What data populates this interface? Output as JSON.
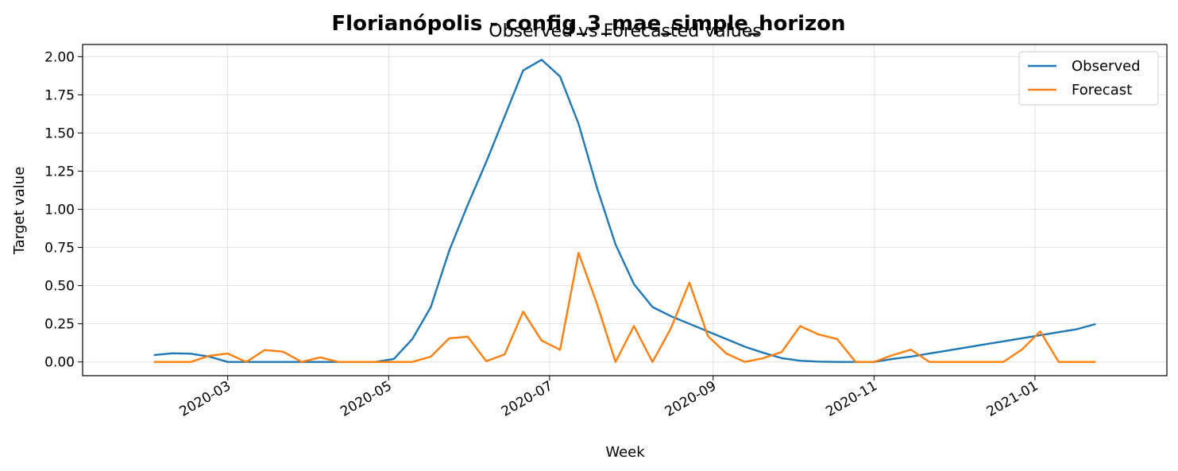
{
  "chart_data": {
    "type": "line",
    "suptitle": "Florianópolis - config_3_mae_simple_horizon",
    "title": "Observed vs Forecasted values",
    "xlabel": "Week",
    "ylabel": "Target value",
    "x": [
      "2020-02-02",
      "2020-02-09",
      "2020-02-16",
      "2020-02-23",
      "2020-03-01",
      "2020-03-08",
      "2020-03-15",
      "2020-03-22",
      "2020-03-29",
      "2020-04-05",
      "2020-04-12",
      "2020-04-19",
      "2020-04-26",
      "2020-05-03",
      "2020-05-10",
      "2020-05-17",
      "2020-05-24",
      "2020-05-31",
      "2020-06-07",
      "2020-06-14",
      "2020-06-21",
      "2020-06-28",
      "2020-07-05",
      "2020-07-12",
      "2020-07-19",
      "2020-07-26",
      "2020-08-02",
      "2020-08-09",
      "2020-08-16",
      "2020-08-23",
      "2020-08-30",
      "2020-09-06",
      "2020-09-13",
      "2020-09-20",
      "2020-09-27",
      "2020-10-04",
      "2020-10-11",
      "2020-10-18",
      "2020-10-25",
      "2020-11-01",
      "2020-11-08",
      "2020-11-15",
      "2020-11-22",
      "2020-11-29",
      "2020-12-06",
      "2020-12-13",
      "2020-12-20",
      "2020-12-27",
      "2021-01-03",
      "2021-01-10",
      "2021-01-17",
      "2021-01-24"
    ],
    "series": [
      {
        "name": "Observed",
        "color": "#1f77b4",
        "values": [
          0.045,
          0.057,
          0.054,
          0.035,
          0,
          0,
          0,
          0,
          0,
          0,
          0,
          0,
          0,
          0.02,
          0.15,
          0.36,
          0.73,
          1.03,
          1.31,
          1.61,
          1.91,
          1.98,
          1.87,
          1.56,
          1.14,
          0.77,
          0.51,
          0.36,
          0.3,
          0.25,
          0.2,
          0.15,
          0.1,
          0.06,
          0.025,
          0.008,
          0.002,
          0,
          0,
          0,
          0.02,
          0.035,
          0.055,
          0.075,
          0.095,
          0.115,
          0.135,
          0.155,
          0.175,
          0.195,
          0.215,
          0.248
        ]
      },
      {
        "name": "Forecast",
        "color": "#ff7f0e",
        "values": [
          0,
          0,
          0,
          0.04,
          0.055,
          0,
          0.078,
          0.067,
          0,
          0.03,
          0,
          0,
          0,
          0,
          0,
          0.035,
          0.155,
          0.165,
          0.005,
          0.05,
          0.33,
          0.14,
          0.08,
          0.715,
          0.38,
          0,
          0.235,
          0,
          0.22,
          0.52,
          0.17,
          0.055,
          0,
          0.025,
          0.065,
          0.235,
          0.18,
          0.15,
          0,
          0,
          0.045,
          0.08,
          0,
          0,
          0,
          0,
          0,
          0.08,
          0.2,
          0,
          0,
          0
        ]
      }
    ],
    "xticks": [
      "2020-03",
      "2020-05",
      "2020-07",
      "2020-09",
      "2020-11",
      "2021-01"
    ],
    "yticks": [
      "0.00",
      "0.25",
      "0.50",
      "0.75",
      "1.00",
      "1.25",
      "1.50",
      "1.75",
      "2.00"
    ],
    "xlim": [
      "2020-01-06",
      "2021-02-20"
    ],
    "ylim": [
      -0.09,
      2.08
    ],
    "grid": true,
    "legend": "top-right"
  }
}
